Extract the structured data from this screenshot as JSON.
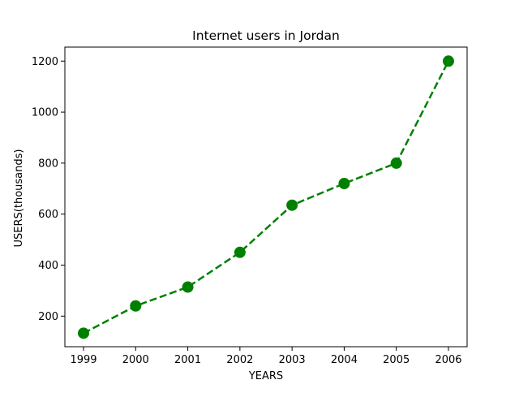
{
  "chart_data": {
    "type": "line",
    "title": "Internet users in Jordan",
    "xlabel": "YEARS",
    "ylabel": "USERS(thousands)",
    "categories": [
      "1999",
      "2000",
      "2001",
      "2002",
      "2003",
      "2004",
      "2005",
      "2006"
    ],
    "series": [
      {
        "values": [
          133,
          240,
          314,
          450,
          635,
          720,
          800,
          1200
        ],
        "color": "#008000",
        "line_style": "dashed",
        "marker": "circle"
      }
    ],
    "ylim": [
      80,
      1255
    ],
    "yticks": [
      200,
      400,
      600,
      800,
      1000,
      1200
    ],
    "grid": false,
    "legend": "none"
  }
}
